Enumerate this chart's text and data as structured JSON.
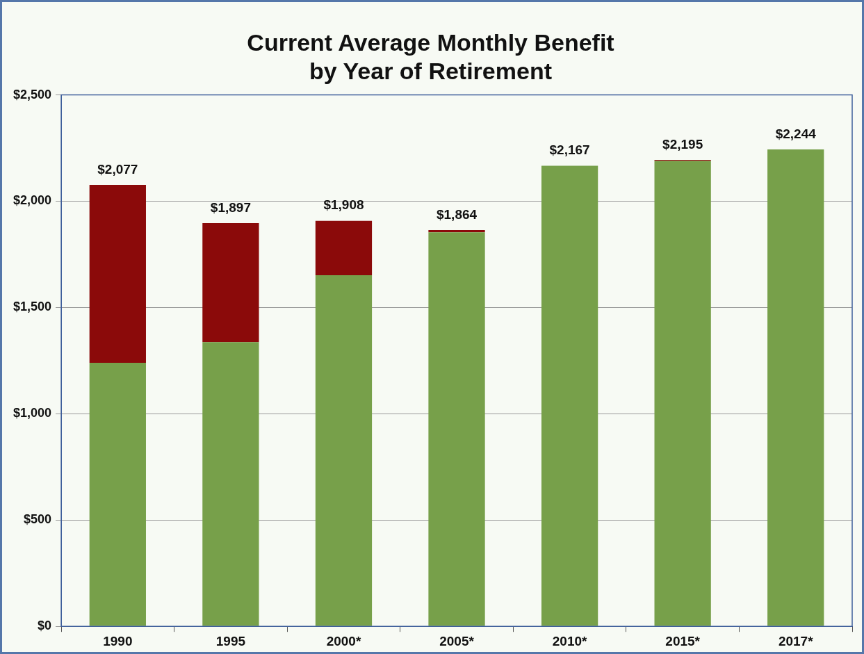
{
  "chart_data": {
    "type": "bar",
    "title": "Current Average Monthly Benefit\nby Year of Retirement",
    "categories": [
      "1990",
      "1995",
      "2000*",
      "2005*",
      "2010*",
      "2015*",
      "2017*"
    ],
    "stacked": true,
    "series": [
      {
        "color": "#77a04a",
        "values": [
          1240,
          1337,
          1652,
          1854,
          2167,
          2190,
          2244
        ]
      },
      {
        "color": "#8b0a0a",
        "values": [
          837,
          560,
          256,
          10,
          null,
          5,
          0
        ]
      }
    ],
    "totals": [
      "$2,077",
      "$1,897",
      "$1,908",
      "$1,864",
      "$2,167",
      "$2,195",
      "$2,244"
    ],
    "ylim": [
      0,
      2500
    ],
    "yticks": [
      {
        "value": 0,
        "label": "$0"
      },
      {
        "value": 500,
        "label": "$500"
      },
      {
        "value": 1000,
        "label": "$1,000"
      },
      {
        "value": 1500,
        "label": "$1,500"
      },
      {
        "value": 2000,
        "label": "$2,000"
      },
      {
        "value": 2500,
        "label": "$2,500"
      }
    ],
    "grid": "y",
    "legend": false
  }
}
